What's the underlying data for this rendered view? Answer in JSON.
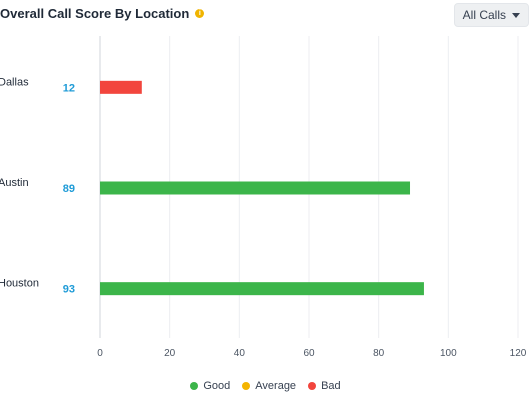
{
  "header": {
    "title": "Overall Call Score By Location",
    "filter_label": "All Calls"
  },
  "colors": {
    "good": "#3cb54a",
    "average": "#f4b400",
    "bad": "#f2453d",
    "score_text": "#1e9bd7"
  },
  "legend": [
    {
      "label": "Good",
      "color": "#3cb54a"
    },
    {
      "label": "Average",
      "color": "#f4b400"
    },
    {
      "label": "Bad",
      "color": "#f2453d"
    }
  ],
  "chart_data": {
    "type": "bar",
    "orientation": "horizontal",
    "title": "Overall Call Score By Location",
    "categories": [
      "Dallas",
      "Austin",
      "Houston"
    ],
    "values": [
      12,
      89,
      93
    ],
    "value_labels": [
      "12",
      "89",
      "93"
    ],
    "bar_status": [
      "Bad",
      "Good",
      "Good"
    ],
    "xlim": [
      0,
      120
    ],
    "xticks": [
      0,
      20,
      40,
      60,
      80,
      100,
      120
    ],
    "grid": true,
    "legend_position": "bottom"
  }
}
